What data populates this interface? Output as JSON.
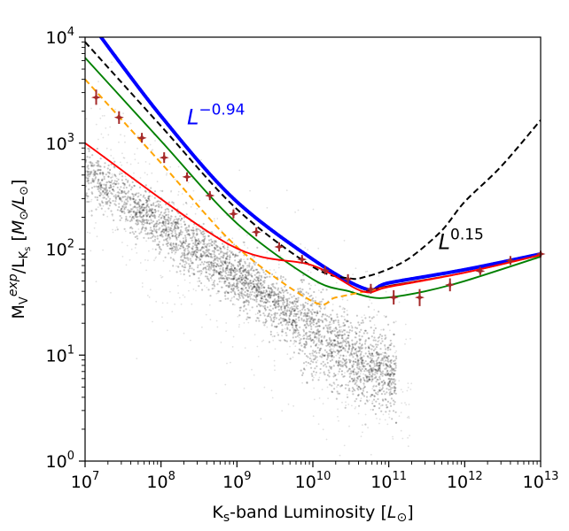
{
  "chart_data": {
    "type": "scatter",
    "xscale": "log",
    "yscale": "log",
    "xlim": [
      10000000.0,
      10000000000000.0
    ],
    "ylim": [
      1,
      10000
    ],
    "xlabel": "K_s-band Luminosity [L_⊙]",
    "ylabel": "M_V^exp/L_Ks [M_⊙/L_⊙]",
    "xticks": [
      {
        "value": 10000000.0,
        "base": "10",
        "exp": "7"
      },
      {
        "value": 100000000.0,
        "base": "10",
        "exp": "8"
      },
      {
        "value": 1000000000.0,
        "base": "10",
        "exp": "9"
      },
      {
        "value": 10000000000.0,
        "base": "10",
        "exp": "10"
      },
      {
        "value": 100000000000.0,
        "base": "10",
        "exp": "11"
      },
      {
        "value": 1000000000000.0,
        "base": "10",
        "exp": "12"
      },
      {
        "value": 10000000000000.0,
        "base": "10",
        "exp": "13"
      }
    ],
    "yticks": [
      {
        "value": 1,
        "base": "10",
        "exp": "0"
      },
      {
        "value": 10,
        "base": "10",
        "exp": "1"
      },
      {
        "value": 100,
        "base": "10",
        "exp": "2"
      },
      {
        "value": 1000,
        "base": "10",
        "exp": "3"
      },
      {
        "value": 10000,
        "base": "10",
        "exp": "4"
      }
    ],
    "annotations": [
      {
        "base": "L",
        "exp": "−0.94",
        "x": 220000000.0,
        "y": 1500,
        "color": "#0000ff"
      },
      {
        "base": "L",
        "exp": "0.15",
        "x": 450000000000.0,
        "y": 100,
        "color": "#000000"
      }
    ],
    "series": [
      {
        "style": "thick-dotted",
        "color": "#0000ff",
        "x": [
          14000000.0,
          100000000.0,
          900000000.0,
          10000000000.0,
          50000000000.0,
          100000000000.0,
          1000000000000.0,
          10000000000000.0
        ],
        "y": [
          11500,
          1800,
          300,
          80,
          42,
          48,
          64,
          90
        ]
      },
      {
        "style": "solid",
        "color": "#8b0000",
        "x": [
          50000000000.0,
          100000000000.0,
          1000000000000.0,
          10000000000000.0
        ],
        "y": [
          40,
          45,
          60,
          88
        ]
      },
      {
        "style": "dashed",
        "color": "#000000",
        "x": [
          10000000.0,
          100000000.0,
          1000000000.0,
          10000000000.0,
          30000000000.0,
          50000000000.0,
          100000000000.0,
          200000000000.0,
          500000000000.0,
          1000000000000.0,
          3000000000000.0,
          10000000000000.0
        ],
        "y": [
          9000,
          1450,
          238,
          68,
          53,
          55,
          65,
          85,
          150,
          280,
          600,
          1650
        ]
      },
      {
        "style": "solid",
        "color": "#008000",
        "x": [
          10000000.0,
          100000000.0,
          1000000000.0,
          10000000000.0,
          30000000000.0,
          60000000000.0,
          100000000000.0,
          300000000000.0,
          1000000000000.0,
          10000000000000.0
        ],
        "y": [
          6400,
          1050,
          175,
          52,
          40,
          35,
          35,
          40,
          50,
          85
        ]
      },
      {
        "style": "dashed",
        "color": "#ffa500",
        "x": [
          10000000.0,
          100000000.0,
          1000000000.0,
          10000000000.0,
          20000000000.0,
          50000000000.0,
          100000000000.0,
          1000000000000.0,
          10000000000000.0
        ],
        "y": [
          4000,
          650,
          105,
          32,
          35,
          40,
          44,
          60,
          88
        ]
      },
      {
        "style": "solid",
        "color": "#ff0000",
        "x": [
          10000000.0,
          800000000.0,
          10000000000.0,
          45000000000.0,
          100000000000.0,
          1000000000000.0,
          10000000000000.0
        ],
        "y": [
          1000,
          110,
          70,
          40,
          44,
          60,
          88
        ]
      },
      {
        "style": "markers",
        "color": "#a52a2a",
        "x": [
          14000000.0,
          28000000.0,
          56000000.0,
          110000000.0,
          220000000.0,
          440000000.0,
          900000000.0,
          1800000000.0,
          3600000000.0,
          7200000000.0,
          14500000000.0,
          29000000000.0,
          58000000000.0,
          116000000000.0,
          255000000000.0,
          640000000000.0,
          1600000000000.0,
          4000000000000.0,
          10000000000000.0
        ],
        "y": [
          2700,
          1750,
          1120,
          730,
          480,
          320,
          215,
          145,
          105,
          80,
          63,
          52,
          42,
          35,
          35,
          46,
          62,
          78,
          90
        ],
        "yerr_low": [
          2300,
          1520,
          1010,
          650,
          435,
          290,
          195,
          132,
          95,
          73,
          58,
          47,
          38,
          30,
          29,
          40,
          57,
          71,
          84
        ],
        "yerr_high": [
          3200,
          2000,
          1250,
          820,
          530,
          352,
          237,
          160,
          116,
          88,
          69,
          58,
          47,
          41,
          42,
          53,
          68,
          86,
          96
        ]
      }
    ],
    "cloud": {
      "color": "#000000",
      "ridge_x": [
        10000000.0,
        100000000.0,
        1000000000.0,
        10000000000.0,
        30000000000.0,
        100000000000.0
      ],
      "ridge_y": [
        550,
        170,
        55,
        17,
        10,
        7
      ]
    }
  }
}
